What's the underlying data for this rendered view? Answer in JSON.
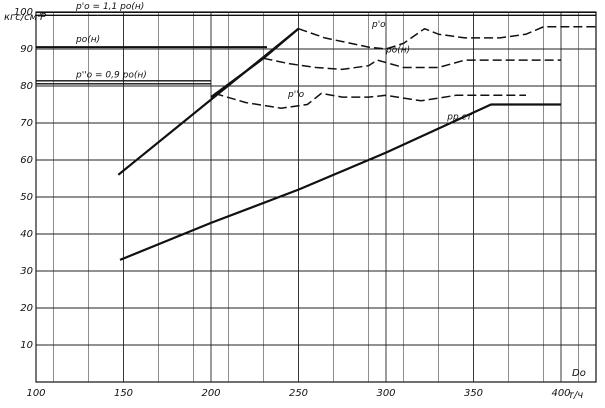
{
  "chart_data": {
    "type": "line",
    "title": "",
    "y_unit_label": "кгс/см²",
    "y_axis_label": "P",
    "x_axis_label": "Do",
    "x_unit_label": "т/ч",
    "xlim": [
      100,
      420
    ],
    "ylim": [
      0,
      100
    ],
    "x_ticks": [
      "100",
      "150",
      "200",
      "250",
      "300",
      "350",
      "400"
    ],
    "x_tick_values": [
      100,
      150,
      200,
      250,
      300,
      350,
      400
    ],
    "y_ticks": [
      "10",
      "20",
      "30",
      "40",
      "50",
      "60",
      "70",
      "80",
      "90",
      "100"
    ],
    "y_tick_values": [
      10,
      20,
      30,
      40,
      50,
      60,
      70,
      80,
      90,
      100
    ],
    "grid": true,
    "reference_lines": [
      {
        "label": "p'о = 1,1 pо(н)",
        "y": 99.5,
        "x_start": 135,
        "x_end": 420,
        "label_x_start": 100,
        "label_x_end": 135,
        "style": "double"
      },
      {
        "label": "pо(н)",
        "y": 90.5,
        "x_start": 100,
        "x_end": 232,
        "style": "solid"
      },
      {
        "label": "p''о = 0,9 pо(н)",
        "y": 81,
        "x_start": 100,
        "x_end": 200,
        "style": "double"
      }
    ],
    "series": [
      {
        "name": "pо(н)",
        "style": "solid",
        "x": [
          200,
          230,
          250
        ],
        "y": [
          77,
          87.5,
          95.5
        ]
      },
      {
        "name": "",
        "style": "solid",
        "x": [
          147,
          250
        ],
        "y": [
          56,
          95.5
        ]
      },
      {
        "name": "p'о",
        "style": "dashed",
        "x": [
          250,
          265,
          280,
          290,
          300,
          310,
          322,
          330,
          345,
          365,
          380,
          390,
          420
        ],
        "y": [
          95.5,
          93,
          91.5,
          90.5,
          90,
          91.5,
          95.5,
          94,
          93,
          93,
          94,
          96,
          96
        ]
      },
      {
        "name": "pо(н)",
        "style": "dashed",
        "x": [
          230,
          245,
          260,
          275,
          290,
          295,
          310,
          330,
          345,
          400
        ],
        "y": [
          87.5,
          86,
          85,
          84.5,
          85.5,
          87,
          85,
          85,
          87,
          87
        ]
      },
      {
        "name": "p''о",
        "style": "dashed",
        "x": [
          202,
          220,
          240,
          255,
          263,
          275,
          290,
          300,
          320,
          340,
          380
        ],
        "y": [
          78,
          75.5,
          74,
          75,
          78,
          77,
          77,
          77.5,
          76,
          77.5,
          77.5
        ]
      },
      {
        "name": "pр.ст",
        "style": "solid",
        "x": [
          148,
          200,
          250,
          300,
          360,
          400
        ],
        "y": [
          33,
          43,
          52,
          62,
          75,
          75
        ]
      }
    ],
    "annotations": [
      {
        "text": "p'о",
        "x": 292,
        "y": 96
      },
      {
        "text": "pо(н)",
        "x": 300,
        "y": 89
      },
      {
        "text": "p''о",
        "x": 244,
        "y": 77
      },
      {
        "text": "pр.ст",
        "x": 335,
        "y": 71
      }
    ]
  }
}
